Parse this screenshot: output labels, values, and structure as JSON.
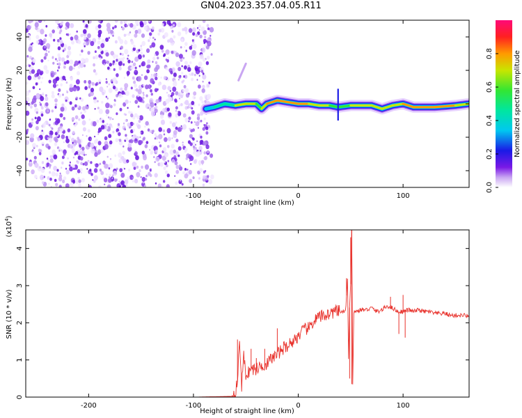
{
  "title": "GN04.2023.357.04.05.R11",
  "chart_data": [
    {
      "type": "heatmap",
      "title": "",
      "xlabel": "Height of straight line (km)",
      "ylabel": "Frequency (Hz)",
      "xlim": [
        -260,
        163
      ],
      "ylim": [
        -50,
        50
      ],
      "xticks": [
        -200,
        -100,
        0,
        100
      ],
      "yticks": [
        -40,
        -20,
        0,
        20,
        40
      ],
      "colorbar": {
        "label": "Normalized spectral amplitude",
        "range": [
          0,
          1
        ],
        "ticks": [
          "0.0",
          "0.2",
          "0.4",
          "0.6",
          "0.8"
        ],
        "colormap": "white-purple-blue-cyan-green-yellow-red-magenta"
      },
      "noise_region_x": [
        -260,
        -82
      ],
      "ridge": {
        "x": [
          -88,
          -80,
          -70,
          -60,
          -50,
          -40,
          -35,
          -30,
          -20,
          -10,
          0,
          10,
          20,
          30,
          38,
          50,
          70,
          80,
          90,
          100,
          110,
          130,
          150,
          163
        ],
        "freq": [
          -3,
          -2,
          0,
          -1,
          0,
          0,
          -3,
          0,
          2,
          1,
          0,
          0,
          -1,
          -1,
          -2,
          -1,
          -1,
          -3,
          -1,
          0,
          -2,
          -2,
          -1,
          0
        ],
        "amplitude": [
          0.3,
          0.4,
          0.55,
          0.6,
          0.85,
          0.7,
          0.65,
          0.75,
          0.9,
          0.8,
          0.85,
          0.8,
          0.7,
          0.72,
          0.6,
          0.75,
          0.78,
          0.8,
          0.7,
          0.8,
          0.85,
          0.88,
          0.75,
          0.7
        ]
      }
    },
    {
      "type": "line",
      "title": "",
      "xlabel": "Height of straight line (km)",
      "ylabel": "SNR (10 * v/v)",
      "scale_label": "(x10^4)",
      "xlim": [
        -260,
        163
      ],
      "ylim": [
        0,
        4.5
      ],
      "xticks": [
        -200,
        -100,
        0,
        100
      ],
      "yticks": [
        0,
        1,
        2,
        3,
        4
      ],
      "color": "#e8302a",
      "series": [
        {
          "name": "",
          "x": [
            -260,
            -100,
            -64,
            -60,
            -58,
            -56,
            -54,
            -52,
            -50,
            -45,
            -40,
            -35,
            -30,
            -25,
            -20,
            -15,
            -10,
            -5,
            0,
            5,
            10,
            15,
            20,
            25,
            30,
            35,
            40,
            45,
            47,
            48,
            49,
            50,
            51,
            52,
            53,
            55,
            60,
            65,
            70,
            75,
            80,
            85,
            90,
            95,
            100,
            105,
            110,
            115,
            120,
            125,
            130,
            135,
            140,
            145,
            150,
            155,
            160,
            163
          ],
          "y": [
            0.0,
            0.0,
            0.02,
            0.15,
            0.4,
            1.55,
            0.3,
            1.1,
            0.6,
            0.75,
            0.75,
            0.85,
            0.9,
            1.05,
            1.15,
            1.3,
            1.4,
            1.5,
            1.65,
            1.8,
            1.85,
            2.05,
            2.15,
            2.2,
            2.25,
            2.3,
            2.3,
            2.3,
            3.15,
            1.0,
            2.4,
            3.0,
            4.5,
            0.4,
            2.3,
            2.3,
            2.35,
            2.35,
            2.4,
            2.3,
            2.35,
            2.45,
            2.4,
            2.3,
            2.3,
            2.35,
            2.3,
            2.35,
            2.3,
            2.3,
            2.25,
            2.25,
            2.25,
            2.2,
            2.2,
            2.2,
            2.2,
            2.15
          ],
          "spikes": [
            {
              "x": -58,
              "y": 1.55
            },
            {
              "x": -45,
              "y": 1.3
            },
            {
              "x": -40,
              "y": 1.05
            },
            {
              "x": -32,
              "y": 1.3
            },
            {
              "x": -20,
              "y": 1.85
            },
            {
              "x": 46,
              "y": 3.2
            },
            {
              "x": 49,
              "y": 0.5
            },
            {
              "x": 50,
              "y": 4.3
            },
            {
              "x": 51,
              "y": 0.35
            },
            {
              "x": 88,
              "y": 2.7
            },
            {
              "x": 96,
              "y": 1.7
            },
            {
              "x": 100,
              "y": 2.75
            },
            {
              "x": 102,
              "y": 1.6
            }
          ]
        }
      ]
    }
  ]
}
